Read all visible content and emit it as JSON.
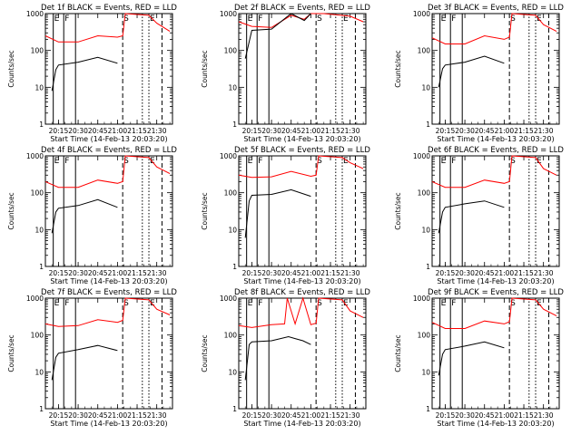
{
  "figure": {
    "xlabel": "Start Time (14-Feb-13 20:03:20)",
    "ylabel": "Counts/sec"
  },
  "colors": {
    "events": "#000000",
    "lld": "#ff0000",
    "axis": "#000000",
    "background": "#ffffff"
  },
  "chart_data": [
    {
      "type": "line",
      "title": "Det 1f BLACK = Events, RED = LLD",
      "yscale": "log",
      "ylim": [
        1,
        1000
      ],
      "xlim": [
        "20:05",
        "21:42"
      ],
      "yticks": [
        "1",
        "10",
        "100",
        "1000"
      ],
      "xticks": [
        "20:15",
        "20:30",
        "20:45",
        "21:00",
        "21:15",
        "21:30"
      ],
      "event_markers": [
        {
          "label": "E",
          "x": "20:11",
          "style": "solid"
        },
        {
          "label": "F",
          "x": "20:19",
          "style": "solid"
        },
        {
          "label": "",
          "x": "20:28",
          "style": "solid"
        },
        {
          "label": "S",
          "x": "21:04",
          "style": "dashed"
        },
        {
          "label": "",
          "x": "21:19",
          "style": "dotted"
        },
        {
          "label": "E",
          "x": "21:24",
          "style": "dotted"
        },
        {
          "label": "",
          "x": "21:34",
          "style": "dashed"
        }
      ],
      "series": [
        {
          "name": "LLD",
          "color": "red",
          "x": [
            "20:05",
            "20:15",
            "20:30",
            "20:45",
            "21:00",
            "21:04",
            "21:06",
            "21:24",
            "21:30",
            "21:40"
          ],
          "values": [
            250,
            170,
            170,
            250,
            230,
            250,
            1100,
            900,
            550,
            330
          ]
        },
        {
          "name": "Events",
          "color": "black",
          "x": [
            "20:10",
            "20:13",
            "20:15",
            "20:30",
            "20:45",
            "21:00"
          ],
          "values": [
            8,
            30,
            40,
            48,
            65,
            45
          ]
        }
      ]
    },
    {
      "type": "line",
      "title": "Det 2f BLACK = Events, RED = LLD",
      "yscale": "log",
      "ylim": [
        1,
        1000
      ],
      "xlim": [
        "20:05",
        "21:42"
      ],
      "yticks": [
        "1",
        "10",
        "100",
        "1000"
      ],
      "xticks": [
        "20:15",
        "20:30",
        "20:45",
        "21:00",
        "21:15",
        "21:30"
      ],
      "event_markers": [
        {
          "label": "E",
          "x": "20:11",
          "style": "solid"
        },
        {
          "label": "F",
          "x": "20:19",
          "style": "solid"
        },
        {
          "label": "",
          "x": "20:28",
          "style": "solid"
        },
        {
          "label": "S",
          "x": "21:04",
          "style": "dashed"
        },
        {
          "label": "",
          "x": "21:19",
          "style": "dotted"
        },
        {
          "label": "E",
          "x": "21:24",
          "style": "dotted"
        },
        {
          "label": "",
          "x": "21:34",
          "style": "dashed"
        }
      ],
      "series": [
        {
          "name": "LLD",
          "color": "red",
          "x": [
            "20:05",
            "20:15",
            "20:30",
            "20:45",
            "20:55",
            "21:00",
            "21:04",
            "21:10",
            "21:30",
            "21:40"
          ],
          "values": [
            600,
            450,
            420,
            900,
            700,
            1000,
            1100,
            1200,
            850,
            600
          ]
        },
        {
          "name": "Events",
          "color": "black",
          "x": [
            "20:10",
            "20:15",
            "20:30",
            "20:45",
            "20:55",
            "21:00"
          ],
          "values": [
            60,
            350,
            380,
            1000,
            650,
            1000
          ]
        }
      ]
    },
    {
      "type": "line",
      "title": "Det 3f BLACK = Events, RED = LLD",
      "yscale": "log",
      "ylim": [
        1,
        1000
      ],
      "xlim": [
        "20:05",
        "21:42"
      ],
      "yticks": [
        "1",
        "10",
        "100",
        "1000"
      ],
      "xticks": [
        "20:15",
        "20:30",
        "20:45",
        "21:00",
        "21:15",
        "21:30"
      ],
      "event_markers": [
        {
          "label": "E",
          "x": "20:11",
          "style": "solid"
        },
        {
          "label": "F",
          "x": "20:19",
          "style": "solid"
        },
        {
          "label": "",
          "x": "20:28",
          "style": "solid"
        },
        {
          "label": "S",
          "x": "21:04",
          "style": "dashed"
        },
        {
          "label": "",
          "x": "21:19",
          "style": "dotted"
        },
        {
          "label": "E",
          "x": "21:24",
          "style": "dotted"
        },
        {
          "label": "",
          "x": "21:34",
          "style": "dashed"
        }
      ],
      "series": [
        {
          "name": "LLD",
          "color": "red",
          "x": [
            "20:05",
            "20:15",
            "20:30",
            "20:45",
            "21:00",
            "21:04",
            "21:06",
            "21:24",
            "21:30",
            "21:40"
          ],
          "values": [
            220,
            150,
            150,
            250,
            200,
            230,
            1100,
            900,
            500,
            330
          ]
        },
        {
          "name": "Events",
          "color": "black",
          "x": [
            "20:10",
            "20:13",
            "20:15",
            "20:30",
            "20:45",
            "21:00"
          ],
          "values": [
            10,
            32,
            40,
            48,
            70,
            45
          ]
        }
      ]
    },
    {
      "type": "line",
      "title": "Det 4f BLACK = Events, RED = LLD",
      "yscale": "log",
      "ylim": [
        1,
        1000
      ],
      "xlim": [
        "20:05",
        "21:42"
      ],
      "yticks": [
        "1",
        "10",
        "100",
        "1000"
      ],
      "xticks": [
        "20:15",
        "20:30",
        "20:45",
        "21:00",
        "21:15",
        "21:30"
      ],
      "event_markers": [
        {
          "label": "E",
          "x": "20:11",
          "style": "solid"
        },
        {
          "label": "F",
          "x": "20:19",
          "style": "solid"
        },
        {
          "label": "",
          "x": "20:28",
          "style": "solid"
        },
        {
          "label": "S",
          "x": "21:04",
          "style": "dashed"
        },
        {
          "label": "",
          "x": "21:19",
          "style": "dotted"
        },
        {
          "label": "E",
          "x": "21:24",
          "style": "dotted"
        },
        {
          "label": "",
          "x": "21:34",
          "style": "dashed"
        }
      ],
      "series": [
        {
          "name": "LLD",
          "color": "red",
          "x": [
            "20:05",
            "20:15",
            "20:30",
            "20:45",
            "21:00",
            "21:04",
            "21:06",
            "21:24",
            "21:30",
            "21:40"
          ],
          "values": [
            200,
            140,
            140,
            220,
            180,
            200,
            1100,
            900,
            500,
            330
          ]
        },
        {
          "name": "Events",
          "color": "black",
          "x": [
            "20:10",
            "20:13",
            "20:15",
            "20:30",
            "20:45",
            "21:00"
          ],
          "values": [
            8,
            30,
            38,
            45,
            65,
            40
          ]
        }
      ]
    },
    {
      "type": "line",
      "title": "Det 5f BLACK = Events, RED = LLD",
      "yscale": "log",
      "ylim": [
        1,
        1000
      ],
      "xlim": [
        "20:05",
        "21:42"
      ],
      "yticks": [
        "1",
        "10",
        "100",
        "1000"
      ],
      "xticks": [
        "20:15",
        "20:30",
        "20:45",
        "21:00",
        "21:15",
        "21:30"
      ],
      "event_markers": [
        {
          "label": "E",
          "x": "20:11",
          "style": "solid"
        },
        {
          "label": "F",
          "x": "20:19",
          "style": "solid"
        },
        {
          "label": "",
          "x": "20:28",
          "style": "solid"
        },
        {
          "label": "S",
          "x": "21:04",
          "style": "dashed"
        },
        {
          "label": "",
          "x": "21:19",
          "style": "dotted"
        },
        {
          "label": "E",
          "x": "21:24",
          "style": "dotted"
        },
        {
          "label": "",
          "x": "21:34",
          "style": "dashed"
        }
      ],
      "series": [
        {
          "name": "LLD",
          "color": "red",
          "x": [
            "20:05",
            "20:15",
            "20:30",
            "20:45",
            "21:00",
            "21:04",
            "21:06",
            "21:24",
            "21:30",
            "21:40"
          ],
          "values": [
            300,
            260,
            270,
            380,
            280,
            300,
            1100,
            900,
            650,
            450
          ]
        },
        {
          "name": "Events",
          "color": "black",
          "x": [
            "20:10",
            "20:13",
            "20:15",
            "20:30",
            "20:45",
            "21:00"
          ],
          "values": [
            6,
            60,
            85,
            90,
            120,
            80
          ]
        }
      ]
    },
    {
      "type": "line",
      "title": "Det 6f BLACK = Events, RED = LLD",
      "yscale": "log",
      "ylim": [
        1,
        1000
      ],
      "xlim": [
        "20:05",
        "21:42"
      ],
      "yticks": [
        "1",
        "10",
        "100",
        "1000"
      ],
      "xticks": [
        "20:15",
        "20:30",
        "20:45",
        "21:00",
        "21:15",
        "21:30"
      ],
      "event_markers": [
        {
          "label": "E",
          "x": "20:11",
          "style": "solid"
        },
        {
          "label": "F",
          "x": "20:19",
          "style": "solid"
        },
        {
          "label": "",
          "x": "20:28",
          "style": "solid"
        },
        {
          "label": "S",
          "x": "21:04",
          "style": "dashed"
        },
        {
          "label": "",
          "x": "21:19",
          "style": "dotted"
        },
        {
          "label": "E",
          "x": "21:24",
          "style": "dotted"
        },
        {
          "label": "",
          "x": "21:34",
          "style": "dashed"
        }
      ],
      "series": [
        {
          "name": "LLD",
          "color": "red",
          "x": [
            "20:05",
            "20:15",
            "20:30",
            "20:45",
            "21:00",
            "21:04",
            "21:06",
            "21:24",
            "21:30",
            "21:40"
          ],
          "values": [
            200,
            140,
            140,
            220,
            180,
            200,
            1100,
            900,
            450,
            300
          ]
        },
        {
          "name": "Events",
          "color": "black",
          "x": [
            "20:10",
            "20:13",
            "20:15",
            "20:30",
            "20:45",
            "21:00"
          ],
          "values": [
            8,
            30,
            40,
            50,
            60,
            40
          ]
        }
      ]
    },
    {
      "type": "line",
      "title": "Det 7f BLACK = Events, RED = LLD",
      "yscale": "log",
      "ylim": [
        1,
        1000
      ],
      "xlim": [
        "20:05",
        "21:42"
      ],
      "yticks": [
        "1",
        "10",
        "100",
        "1000"
      ],
      "xticks": [
        "20:15",
        "20:30",
        "20:45",
        "21:00",
        "21:15",
        "21:30"
      ],
      "event_markers": [
        {
          "label": "E",
          "x": "20:11",
          "style": "solid"
        },
        {
          "label": "F",
          "x": "20:19",
          "style": "solid"
        },
        {
          "label": "",
          "x": "20:28",
          "style": "solid"
        },
        {
          "label": "S",
          "x": "21:04",
          "style": "dashed"
        },
        {
          "label": "",
          "x": "21:19",
          "style": "dotted"
        },
        {
          "label": "E",
          "x": "21:24",
          "style": "dotted"
        },
        {
          "label": "",
          "x": "21:34",
          "style": "dashed"
        }
      ],
      "series": [
        {
          "name": "LLD",
          "color": "red",
          "x": [
            "20:05",
            "20:15",
            "20:30",
            "20:45",
            "21:00",
            "21:04",
            "21:06",
            "21:24",
            "21:30",
            "21:40"
          ],
          "values": [
            200,
            170,
            180,
            260,
            220,
            250,
            1100,
            900,
            500,
            350
          ]
        },
        {
          "name": "Events",
          "color": "black",
          "x": [
            "20:10",
            "20:13",
            "20:15",
            "20:30",
            "20:45",
            "21:00"
          ],
          "values": [
            6,
            25,
            32,
            40,
            52,
            38
          ]
        }
      ]
    },
    {
      "type": "line",
      "title": "Det 8f BLACK = Events, RED = LLD",
      "yscale": "log",
      "ylim": [
        1,
        1000
      ],
      "xlim": [
        "20:05",
        "21:42"
      ],
      "yticks": [
        "1",
        "10",
        "100",
        "1000"
      ],
      "xticks": [
        "20:15",
        "20:30",
        "20:45",
        "21:00",
        "21:15",
        "21:30"
      ],
      "event_markers": [
        {
          "label": "E",
          "x": "20:11",
          "style": "solid"
        },
        {
          "label": "F",
          "x": "20:19",
          "style": "solid"
        },
        {
          "label": "",
          "x": "20:28",
          "style": "solid"
        },
        {
          "label": "S",
          "x": "21:04",
          "style": "dashed"
        },
        {
          "label": "",
          "x": "21:19",
          "style": "dotted"
        },
        {
          "label": "E",
          "x": "21:24",
          "style": "dotted"
        },
        {
          "label": "",
          "x": "21:34",
          "style": "dashed"
        }
      ],
      "series": [
        {
          "name": "LLD",
          "color": "red",
          "x": [
            "20:05",
            "20:15",
            "20:30",
            "20:40",
            "20:42",
            "20:48",
            "20:54",
            "21:00",
            "21:04",
            "21:06",
            "21:24",
            "21:30",
            "21:40"
          ],
          "values": [
            180,
            160,
            190,
            200,
            1000,
            200,
            1000,
            190,
            210,
            1100,
            900,
            450,
            300
          ]
        },
        {
          "name": "Events",
          "color": "black",
          "x": [
            "20:10",
            "20:13",
            "20:15",
            "20:30",
            "20:43",
            "20:48",
            "20:54",
            "21:00"
          ],
          "values": [
            6,
            55,
            65,
            70,
            90,
            80,
            70,
            55
          ]
        }
      ]
    },
    {
      "type": "line",
      "title": "Det 9f BLACK = Events, RED = LLD",
      "yscale": "log",
      "ylim": [
        1,
        1000
      ],
      "xlim": [
        "20:05",
        "21:42"
      ],
      "yticks": [
        "1",
        "10",
        "100",
        "1000"
      ],
      "xticks": [
        "20:15",
        "20:30",
        "20:45",
        "21:00",
        "21:15",
        "21:30"
      ],
      "event_markers": [
        {
          "label": "E",
          "x": "20:11",
          "style": "solid"
        },
        {
          "label": "F",
          "x": "20:19",
          "style": "solid"
        },
        {
          "label": "",
          "x": "20:28",
          "style": "solid"
        },
        {
          "label": "S",
          "x": "21:04",
          "style": "dashed"
        },
        {
          "label": "",
          "x": "21:19",
          "style": "dotted"
        },
        {
          "label": "E",
          "x": "21:24",
          "style": "dotted"
        },
        {
          "label": "",
          "x": "21:34",
          "style": "dashed"
        }
      ],
      "series": [
        {
          "name": "LLD",
          "color": "red",
          "x": [
            "20:05",
            "20:15",
            "20:30",
            "20:45",
            "21:00",
            "21:04",
            "21:06",
            "21:24",
            "21:30",
            "21:40"
          ],
          "values": [
            220,
            150,
            150,
            240,
            200,
            230,
            1100,
            900,
            500,
            330
          ]
        },
        {
          "name": "Events",
          "color": "black",
          "x": [
            "20:10",
            "20:13",
            "20:15",
            "20:30",
            "20:45",
            "21:00"
          ],
          "values": [
            8,
            30,
            40,
            50,
            65,
            45
          ]
        }
      ]
    }
  ]
}
